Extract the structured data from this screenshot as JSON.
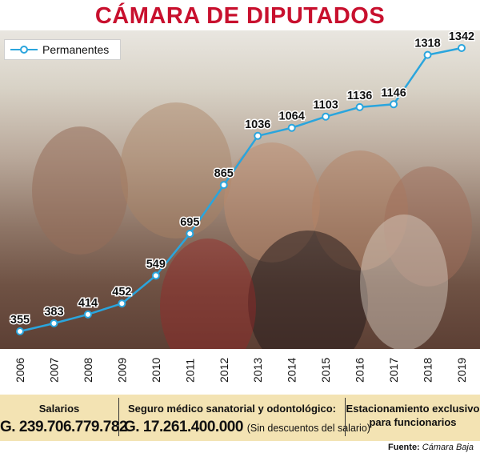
{
  "title": "CÁMARA DE DIPUTADOS",
  "chart_data": {
    "type": "line",
    "title": "CÁMARA DE DIPUTADOS",
    "xlabel": "",
    "ylabel": "",
    "x": [
      "2006",
      "2007",
      "2008",
      "2009",
      "2010",
      "2011",
      "2012",
      "2013",
      "2014",
      "2015",
      "2016",
      "2017",
      "2018",
      "2019"
    ],
    "series": [
      {
        "name": "Permanentes",
        "values": [
          355,
          383,
          414,
          452,
          549,
          695,
          865,
          1036,
          1064,
          1103,
          1136,
          1146,
          1318,
          1342
        ],
        "color": "#2aa5dd"
      }
    ],
    "legend": "top-left",
    "grid": false
  },
  "footer": {
    "salarios_label": "Salarios",
    "salarios_value": "G. 239.706.779.782",
    "seguro_label": "Seguro médico sanatorial y odontológico:",
    "seguro_value": "G. 17.261.400.000",
    "seguro_note": "(Sin descuentos del salario)",
    "estacionamiento_line1": "Estacionamiento exclusivo",
    "estacionamiento_line2": "para funcionarios"
  },
  "source": {
    "label": "Fuente:",
    "value": "Cámara Baja"
  },
  "colors": {
    "title": "#c8102e",
    "line": "#2aa5dd",
    "footer_bg": "#f3e3b3"
  }
}
